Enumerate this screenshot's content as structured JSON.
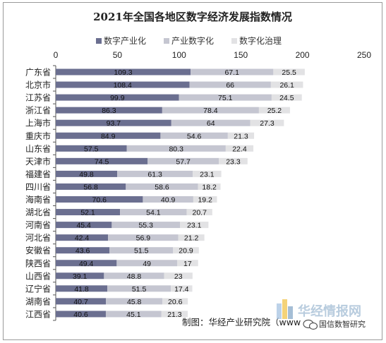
{
  "chart_data": {
    "type": "bar",
    "orientation": "horizontal",
    "stacked": true,
    "title": "2021年全国各地区数字经济发展指数情况",
    "categories": [
      "广东省",
      "北京市",
      "江苏省",
      "浙江省",
      "上海市",
      "重庆市",
      "山东省",
      "天津市",
      "福建省",
      "四川省",
      "海南省",
      "湖北省",
      "河南省",
      "河北省",
      "安徽省",
      "陕西省",
      "山西省",
      "辽宁省",
      "湖南省",
      "江西省"
    ],
    "series": [
      {
        "name": "数字产业化",
        "color": "#6b6f90",
        "values": [
          109.3,
          108.4,
          99.9,
          86.3,
          93.7,
          84.9,
          57.5,
          74.5,
          49.8,
          56.8,
          70.6,
          52.1,
          45.4,
          42.4,
          43.6,
          49.4,
          39.1,
          41.8,
          40.7,
          40.6
        ]
      },
      {
        "name": "产业数字化",
        "color": "#c5c6d1",
        "values": [
          67.1,
          66,
          75.1,
          78.4,
          64,
          54.6,
          80.3,
          57.7,
          61.3,
          58.6,
          40.9,
          54.1,
          55.3,
          56.9,
          51.5,
          49,
          48.8,
          51.5,
          45.8,
          45.1
        ]
      },
      {
        "name": "数字化治理",
        "color": "#e2e2e4",
        "values": [
          25.5,
          26.1,
          24.5,
          25.2,
          27.3,
          21.3,
          22.4,
          23.3,
          23.1,
          18.2,
          19.2,
          20.7,
          23.1,
          21.2,
          20.9,
          17,
          23,
          17.4,
          20.6,
          21.3
        ]
      }
    ],
    "xlim": [
      0,
      250
    ],
    "xticks": [
      "0",
      "50",
      "100",
      "150",
      "200",
      "250"
    ],
    "legend_position": "top",
    "grid": false,
    "source": "制图：华经产业研究院（www.huaon.com）"
  },
  "watermark": {
    "site": "华经情报网",
    "account": "国信数智研究"
  }
}
